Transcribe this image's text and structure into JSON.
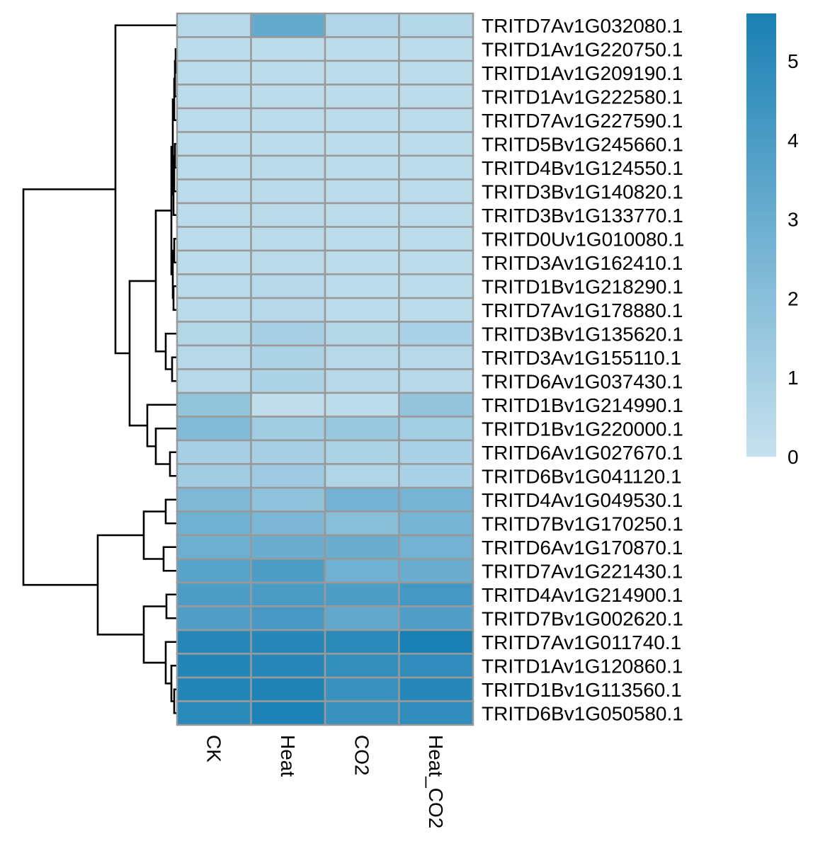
{
  "chart_data": {
    "type": "heatmap",
    "columns": [
      "CK",
      "Heat",
      "CO2",
      "Heat_CO2"
    ],
    "rows": [
      {
        "gene": "TRITD7Av1G032080.1",
        "values": [
          0.5,
          3.2,
          0.7,
          0.6
        ]
      },
      {
        "gene": "TRITD1Av1G220750.1",
        "values": [
          0.3,
          0.3,
          0.3,
          0.3
        ]
      },
      {
        "gene": "TRITD1Av1G209190.1",
        "values": [
          0.3,
          0.3,
          0.3,
          0.3
        ]
      },
      {
        "gene": "TRITD1Av1G222580.1",
        "values": [
          0.3,
          0.3,
          0.3,
          0.3
        ]
      },
      {
        "gene": "TRITD7Av1G227590.1",
        "values": [
          0.3,
          0.3,
          0.3,
          0.3
        ]
      },
      {
        "gene": "TRITD5Bv1G245660.1",
        "values": [
          0.3,
          0.3,
          0.3,
          0.3
        ]
      },
      {
        "gene": "TRITD4Bv1G124550.1",
        "values": [
          0.3,
          0.4,
          0.3,
          0.3
        ]
      },
      {
        "gene": "TRITD3Bv1G140820.1",
        "values": [
          0.3,
          0.4,
          0.3,
          0.3
        ]
      },
      {
        "gene": "TRITD3Bv1G133770.1",
        "values": [
          0.3,
          0.4,
          0.3,
          0.3
        ]
      },
      {
        "gene": "TRITD0Uv1G010080.1",
        "values": [
          0.3,
          0.4,
          0.3,
          0.3
        ]
      },
      {
        "gene": "TRITD3Av1G162410.1",
        "values": [
          0.3,
          0.4,
          0.3,
          0.3
        ]
      },
      {
        "gene": "TRITD1Bv1G218290.1",
        "values": [
          0.4,
          0.5,
          0.3,
          0.3
        ]
      },
      {
        "gene": "TRITD7Av1G178880.1",
        "values": [
          0.4,
          0.5,
          0.3,
          0.3
        ]
      },
      {
        "gene": "TRITD3Bv1G135620.1",
        "values": [
          0.6,
          1.0,
          0.6,
          0.9
        ]
      },
      {
        "gene": "TRITD3Av1G155110.1",
        "values": [
          0.5,
          0.8,
          0.5,
          0.5
        ]
      },
      {
        "gene": "TRITD6Av1G037430.1",
        "values": [
          0.5,
          0.8,
          0.5,
          0.5
        ]
      },
      {
        "gene": "TRITD1Bv1G214990.1",
        "values": [
          1.7,
          0.2,
          0.3,
          1.6
        ]
      },
      {
        "gene": "TRITD1Bv1G220000.1",
        "values": [
          2.2,
          1.2,
          1.5,
          1.1
        ]
      },
      {
        "gene": "TRITD6Av1G027670.1",
        "values": [
          1.0,
          1.0,
          0.8,
          0.9
        ]
      },
      {
        "gene": "TRITD6Bv1G041120.1",
        "values": [
          1.2,
          1.3,
          0.7,
          0.9
        ]
      },
      {
        "gene": "TRITD4Av1G049530.1",
        "values": [
          2.3,
          1.8,
          2.7,
          2.6
        ]
      },
      {
        "gene": "TRITD7Bv1G170250.1",
        "values": [
          2.8,
          2.4,
          2.0,
          2.6
        ]
      },
      {
        "gene": "TRITD6Av1G170870.1",
        "values": [
          2.9,
          3.0,
          3.0,
          2.7
        ]
      },
      {
        "gene": "TRITD7Av1G221430.1",
        "values": [
          3.6,
          3.9,
          2.8,
          3.0
        ]
      },
      {
        "gene": "TRITD4Av1G214900.1",
        "values": [
          3.9,
          4.0,
          3.9,
          4.2
        ]
      },
      {
        "gene": "TRITD7Bv1G002620.1",
        "values": [
          3.8,
          4.1,
          3.3,
          3.8
        ]
      },
      {
        "gene": "TRITD7Av1G011740.1",
        "values": [
          5.2,
          5.2,
          5.0,
          5.6
        ]
      },
      {
        "gene": "TRITD1Av1G120860.1",
        "values": [
          5.3,
          5.2,
          4.8,
          4.9
        ]
      },
      {
        "gene": "TRITD1Bv1G113560.1",
        "values": [
          5.3,
          5.4,
          4.6,
          5.2
        ]
      },
      {
        "gene": "TRITD6Bv1G050580.1",
        "values": [
          5.1,
          5.5,
          4.6,
          4.9
        ]
      }
    ],
    "legend": {
      "ticks": [
        0,
        1,
        2,
        3,
        4,
        5
      ],
      "range": [
        0,
        5.6
      ],
      "color_low": "#c6e1ee",
      "color_high": "#1a80b4"
    },
    "cell_border_color": "#999999",
    "title": "",
    "xlabel": "",
    "ylabel": ""
  }
}
